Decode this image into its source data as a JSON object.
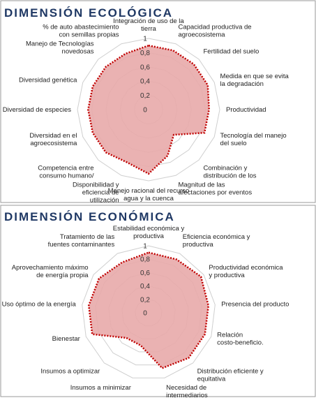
{
  "chart_data": [
    {
      "type": "radar",
      "title": "DIMENSIÓN ECOLÓGICA",
      "categories": [
        "Integración de uso de la tierra",
        "Capacidad productiva de agroecosistema",
        "Fertilidad del suelo",
        "Medida en que se evita la degradación",
        "Productividad",
        "Tecnología del manejo del suelo",
        "Combinación y distribución de los",
        "Magnitud de las afectaciones por eventos",
        "Manejo racional del recurso agua y la cuenca",
        "Disponibilidad y eficiencia de utilización",
        "Competencia entre consumo humano/",
        "Diversidad en el agroecosistema",
        "Diversidad de especies",
        "Diversidad genética",
        "Manejo de Tecnologías novedosas",
        "% de auto abastecimiento con semillas propias"
      ],
      "values": [
        0.9,
        0.9,
        0.9,
        0.9,
        0.85,
        0.85,
        0.5,
        0.7,
        0.9,
        0.8,
        0.85,
        0.85,
        0.85,
        0.85,
        0.85,
        0.85
      ],
      "color": "#e8aaaa",
      "line_color": "#c00000",
      "ylim": [
        0,
        1
      ],
      "yticks": [
        0,
        {
          "value": 0.2,
          "label": "0,2"
        },
        {
          "value": 0.4,
          "label": "0,4"
        },
        {
          "value": 0.6,
          "label": "0,6"
        },
        {
          "value": 0.8,
          "label": "0,8"
        },
        1
      ],
      "grid": true
    },
    {
      "type": "radar",
      "title": "DIMENSIÓN ECONÓMICA",
      "categories": [
        "Estabilidad económica y productiva",
        "Eficiencia económica y productiva",
        "Productividad económica y productiva",
        "Presencia del producto",
        "Relación costo-beneficio.",
        "Distribución eficiente y equitativa",
        "Necesidad de intermediarios",
        "Insumos a minimizar",
        "Insumos a optimizar",
        "Bienestar",
        "Uso óptimo de la energía",
        "Aprovechamiento máximo de energía propia",
        "Tratamiento de las fuentes contaminantes"
      ],
      "values": [
        0.9,
        0.9,
        0.95,
        0.9,
        0.9,
        0.9,
        0.85,
        0.5,
        0.5,
        0.9,
        0.9,
        0.9,
        0.85
      ],
      "color": "#e8aaaa",
      "line_color": "#c00000",
      "ylim": [
        0,
        1
      ],
      "yticks": [
        0,
        {
          "value": 0.2,
          "label": "0,2"
        },
        {
          "value": 0.4,
          "label": "0,4"
        },
        {
          "value": 0.6,
          "label": "0,6"
        },
        {
          "value": 0.8,
          "label": "0,8"
        },
        1
      ],
      "grid": true
    }
  ]
}
